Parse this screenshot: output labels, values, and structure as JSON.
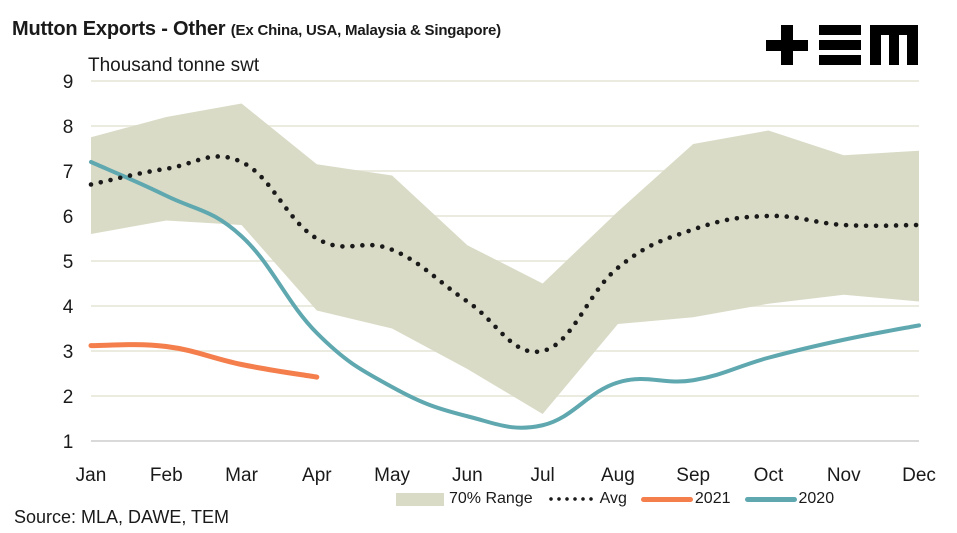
{
  "header": {
    "title": "Mutton Exports - Other",
    "subtitle": "(Ex China, USA, Malaysia & Singapore)",
    "logo_text": "TEM"
  },
  "footer": {
    "source": "Source: MLA, DAWE, TEM"
  },
  "colors": {
    "range": "#d9dbc6",
    "avg": "#1a1a1a",
    "y2021": "#f47f4d",
    "y2020": "#5fa8b0",
    "grid": "#ebebe0"
  },
  "chart_data": {
    "type": "line",
    "title": "Mutton Exports - Other (Ex China, USA, Malaysia & Singapore)",
    "xlabel": "",
    "ylabel": "Thousand tonne swt",
    "ylim": [
      1,
      9
    ],
    "yticks": [
      "1",
      "2",
      "3",
      "4",
      "5",
      "6",
      "7",
      "8",
      "9"
    ],
    "grid": true,
    "legend_position": "bottom-right",
    "categories": [
      "Jan",
      "Feb",
      "Mar",
      "Apr",
      "May",
      "Jun",
      "Jul",
      "Aug",
      "Sep",
      "Oct",
      "Nov",
      "Dec"
    ],
    "range": {
      "name": "70% Range",
      "upper": [
        7.75,
        8.2,
        8.5,
        7.15,
        6.9,
        5.35,
        4.5,
        6.1,
        7.6,
        7.9,
        7.35,
        7.45
      ],
      "lower": [
        5.6,
        5.9,
        5.8,
        3.9,
        3.5,
        2.6,
        1.6,
        3.6,
        3.75,
        4.05,
        4.25,
        4.1
      ]
    },
    "series": [
      {
        "name": "Avg",
        "style": "dotted",
        "values": [
          6.7,
          7.05,
          7.2,
          5.5,
          5.25,
          4.1,
          3.0,
          4.85,
          5.7,
          6.0,
          5.8,
          5.8
        ]
      },
      {
        "name": "2021",
        "style": "solid",
        "values": [
          3.12,
          3.1,
          2.7,
          2.42,
          null,
          null,
          null,
          null,
          null,
          null,
          null,
          null
        ]
      },
      {
        "name": "2020",
        "style": "solid",
        "values": [
          7.2,
          6.45,
          5.55,
          3.4,
          2.2,
          1.55,
          1.35,
          2.3,
          2.35,
          2.85,
          3.25,
          3.57
        ]
      }
    ]
  }
}
